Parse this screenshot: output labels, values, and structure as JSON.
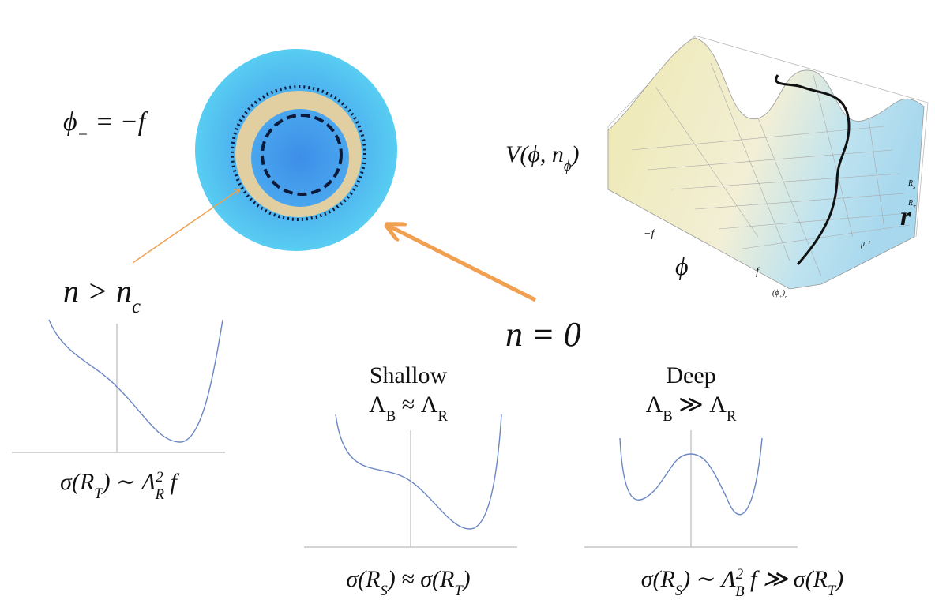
{
  "labels": {
    "phi_minus": [
      "ϕ",
      "−",
      " = −f"
    ],
    "n_gt": [
      "n > n",
      "c"
    ],
    "n_zero": "n = 0",
    "potential": [
      "V(ϕ, n",
      "ϕ",
      ")"
    ],
    "axis_phi": "ϕ",
    "axis_r": "r",
    "tick_minus_f": "−f",
    "tick_f": "f",
    "tick_phi_plus": [
      "(ϕ",
      "+",
      ")",
      "n"
    ],
    "tick_rs": [
      "R",
      "S"
    ],
    "tick_rt": [
      "R",
      "T"
    ],
    "tick_mu": [
      "μ",
      "−1"
    ]
  },
  "panels": [
    {
      "caption": [
        "σ(R",
        "T",
        ") ∼ Λ",
        "2",
        "R",
        " f"
      ]
    },
    {
      "title": "Shallow",
      "subtitle": [
        "Λ",
        "B",
        " ≈ Λ",
        "R"
      ],
      "caption": [
        "σ(R",
        "S",
        ") ≈ σ(R",
        "T",
        ")"
      ]
    },
    {
      "title": "Deep",
      "subtitle": [
        "Λ",
        "B",
        " ≫ Λ",
        "R"
      ],
      "caption": [
        "σ(R",
        "S",
        ") ∼ Λ",
        "2",
        "B",
        " f ≫ σ(R",
        "T",
        ")"
      ]
    }
  ]
}
